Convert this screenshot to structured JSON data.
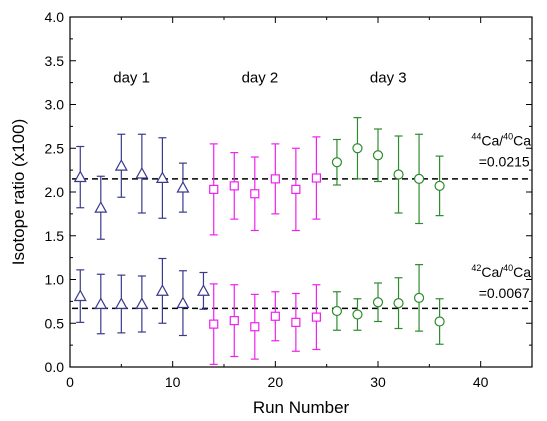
{
  "chart_data": {
    "type": "scatter",
    "xlabel": "Run Number",
    "ylabel": "Isotope ratio  (x100)",
    "xlim": [
      0,
      45
    ],
    "ylim": [
      0.0,
      4.0
    ],
    "x_ticks": [
      "0",
      "10",
      "20",
      "30",
      "40"
    ],
    "x_tick_values": [
      0,
      10,
      20,
      30,
      40
    ],
    "y_ticks": [
      "0.0",
      "0.5",
      "1.0",
      "1.5",
      "2.0",
      "2.5",
      "3.0",
      "3.5",
      "4.0"
    ],
    "y_tick_values": [
      0.0,
      0.5,
      1.0,
      1.5,
      2.0,
      2.5,
      3.0,
      3.5,
      4.0
    ],
    "grid": false,
    "day_labels": [
      {
        "text": "day 1",
        "x": 6,
        "y": 3.25
      },
      {
        "text": "day 2",
        "x": 18.5,
        "y": 3.25
      },
      {
        "text": "day 3",
        "x": 31,
        "y": 3.25
      }
    ],
    "reference_lines": [
      {
        "y": 2.15,
        "label_ratio": "Ca/",
        "label_mass1": "44",
        "label_mass2": "40",
        "label_el": "Ca",
        "label_value": "=0.0215",
        "label_x": 42,
        "label_y": 2.53
      },
      {
        "y": 0.67,
        "label_ratio": "Ca/",
        "label_mass1": "42",
        "label_mass2": "40",
        "label_el": "Ca",
        "label_value": "=0.0067",
        "label_x": 42,
        "label_y": 1.03
      }
    ],
    "series": [
      {
        "color": "#3a3a8c",
        "marker": "triangle",
        "points": [
          {
            "x": 1,
            "y": 2.17,
            "err": 0.35
          },
          {
            "x": 3,
            "y": 1.82,
            "err": 0.36
          },
          {
            "x": 5,
            "y": 2.3,
            "err": 0.36
          },
          {
            "x": 7,
            "y": 2.21,
            "err": 0.45
          },
          {
            "x": 9,
            "y": 2.16,
            "err": 0.46
          },
          {
            "x": 11,
            "y": 2.05,
            "err": 0.28
          },
          {
            "x": 1,
            "y": 0.81,
            "err": 0.3
          },
          {
            "x": 3,
            "y": 0.72,
            "err": 0.34
          },
          {
            "x": 5,
            "y": 0.72,
            "err": 0.33
          },
          {
            "x": 7,
            "y": 0.72,
            "err": 0.32
          },
          {
            "x": 9,
            "y": 0.87,
            "err": 0.37
          },
          {
            "x": 11,
            "y": 0.73,
            "err": 0.37
          },
          {
            "x": 13,
            "y": 0.87,
            "err": 0.21
          }
        ]
      },
      {
        "color": "#ee22ee",
        "marker": "square",
        "points": [
          {
            "x": 14,
            "y": 2.03,
            "err": 0.52
          },
          {
            "x": 16,
            "y": 2.07,
            "err": 0.38
          },
          {
            "x": 18,
            "y": 1.98,
            "err": 0.42
          },
          {
            "x": 20,
            "y": 2.15,
            "err": 0.4
          },
          {
            "x": 22,
            "y": 2.03,
            "err": 0.47
          },
          {
            "x": 24,
            "y": 2.16,
            "err": 0.47
          },
          {
            "x": 14,
            "y": 0.49,
            "err": 0.46
          },
          {
            "x": 16,
            "y": 0.53,
            "err": 0.41
          },
          {
            "x": 18,
            "y": 0.46,
            "err": 0.37
          },
          {
            "x": 20,
            "y": 0.58,
            "err": 0.28
          },
          {
            "x": 22,
            "y": 0.51,
            "err": 0.33
          },
          {
            "x": 24,
            "y": 0.57,
            "err": 0.37
          }
        ]
      },
      {
        "color": "#2e8b2e",
        "marker": "circle",
        "points": [
          {
            "x": 26,
            "y": 2.34,
            "err": 0.26
          },
          {
            "x": 28,
            "y": 2.5,
            "err": 0.35
          },
          {
            "x": 30,
            "y": 2.42,
            "err": 0.3
          },
          {
            "x": 32,
            "y": 2.2,
            "err": 0.44
          },
          {
            "x": 34,
            "y": 2.15,
            "err": 0.51
          },
          {
            "x": 36,
            "y": 2.07,
            "err": 0.34
          },
          {
            "x": 26,
            "y": 0.64,
            "err": 0.22
          },
          {
            "x": 28,
            "y": 0.6,
            "err": 0.18
          },
          {
            "x": 30,
            "y": 0.74,
            "err": 0.22
          },
          {
            "x": 32,
            "y": 0.73,
            "err": 0.29
          },
          {
            "x": 34,
            "y": 0.79,
            "err": 0.38
          },
          {
            "x": 36,
            "y": 0.52,
            "err": 0.26
          }
        ]
      }
    ]
  }
}
